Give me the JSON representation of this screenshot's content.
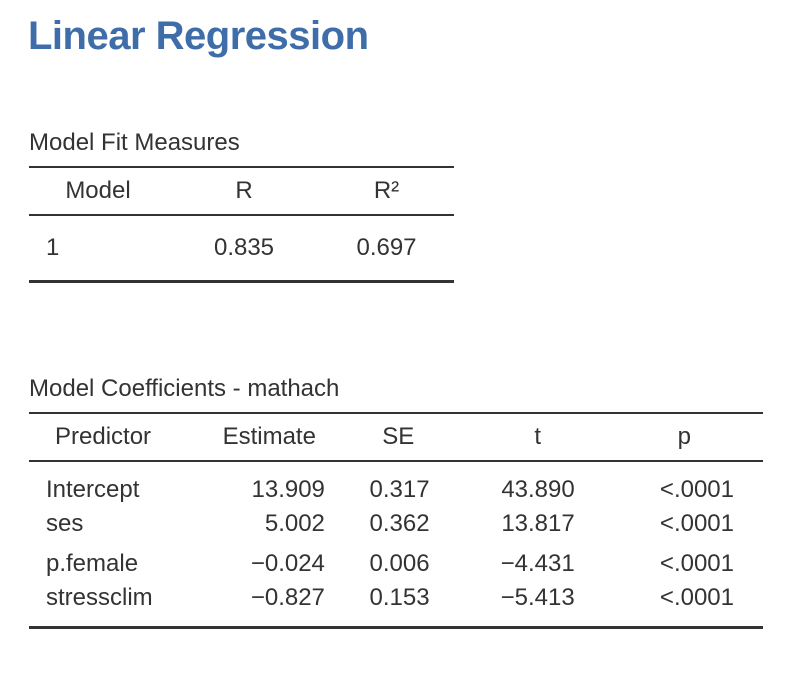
{
  "title": "Linear Regression",
  "model_fit": {
    "caption": "Model Fit Measures",
    "headers": [
      "Model",
      "R",
      "R²"
    ],
    "rows": [
      [
        "1",
        "0.835",
        "0.697"
      ]
    ]
  },
  "coefficients": {
    "caption": "Model Coefficients - mathach",
    "headers": [
      "Predictor",
      "Estimate",
      "SE",
      "t",
      "p"
    ],
    "rows": [
      [
        "Intercept",
        "13.909",
        "0.317",
        "43.890",
        "<.0001"
      ],
      [
        "ses",
        "5.002",
        "0.362",
        "13.817",
        "<.0001"
      ],
      [
        "p.female",
        "−0.024",
        "0.006",
        "−4.431",
        "<.0001"
      ],
      [
        "stressclim",
        "−0.827",
        "0.153",
        "−5.413",
        "<.0001"
      ]
    ]
  }
}
